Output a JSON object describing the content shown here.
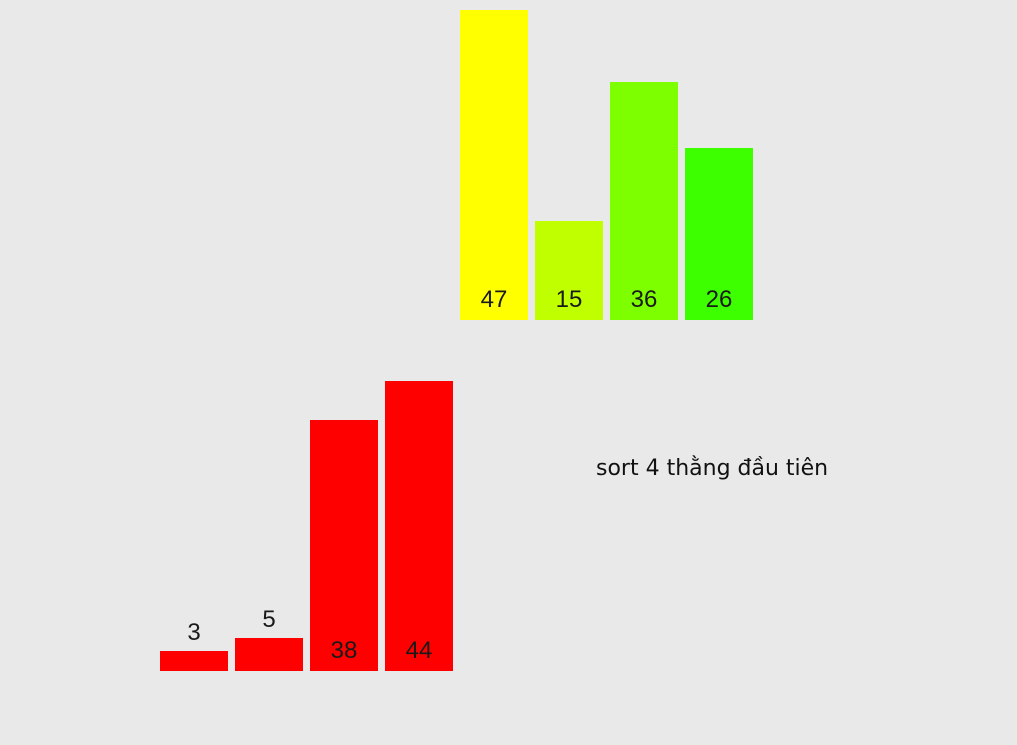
{
  "top_group": {
    "bars": [
      {
        "value": 47,
        "label": "47",
        "color": "#ffff00"
      },
      {
        "value": 15,
        "label": "15",
        "color": "#bfff00"
      },
      {
        "value": 36,
        "label": "36",
        "color": "#7dff00"
      },
      {
        "value": 26,
        "label": "26",
        "color": "#3dff00"
      }
    ]
  },
  "bottom_group": {
    "bars": [
      {
        "value": 3,
        "label": "3",
        "color": "#ff0000"
      },
      {
        "value": 5,
        "label": "5",
        "color": "#ff0000"
      },
      {
        "value": 38,
        "label": "38",
        "color": "#ff0000"
      },
      {
        "value": 44,
        "label": "44",
        "color": "#ff0000"
      }
    ]
  },
  "caption": "sort 4 thằng đầu tiên"
}
